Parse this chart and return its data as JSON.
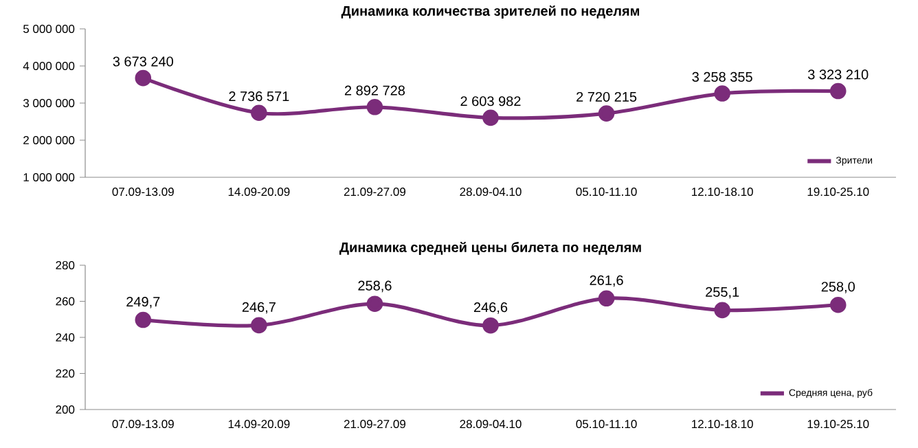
{
  "chart_data": [
    {
      "type": "line",
      "title": "Динамика количества зрителей по неделям",
      "categories": [
        "07.09-13.09",
        "14.09-20.09",
        "21.09-27.09",
        "28.09-04.10",
        "05.10-11.10",
        "12.10-18.10",
        "19.10-25.10"
      ],
      "series": [
        {
          "name": "Зрители",
          "color": "#7b2c7a",
          "values": [
            3673240,
            2736571,
            2892728,
            2603982,
            2720215,
            3258355,
            3323210
          ],
          "value_labels": [
            "3 673 240",
            "2 736 571",
            "2 892 728",
            "2 603 982",
            "2 720 215",
            "3 258 355",
            "3 323 210"
          ]
        }
      ],
      "ylim": [
        1000000,
        5000000
      ],
      "yticks": [
        {
          "value": 1000000,
          "label": "1 000 000"
        },
        {
          "value": 2000000,
          "label": "2 000 000"
        },
        {
          "value": 3000000,
          "label": "3 000 000"
        },
        {
          "value": 4000000,
          "label": "4 000 000"
        },
        {
          "value": 5000000,
          "label": "5 000 000"
        }
      ],
      "legend": "bottom right",
      "marker": "circle",
      "grid": false
    },
    {
      "type": "line",
      "title": "Динамика средней цены билета по неделям",
      "categories": [
        "07.09-13.09",
        "14.09-20.09",
        "21.09-27.09",
        "28.09-04.10",
        "05.10-11.10",
        "12.10-18.10",
        "19.10-25.10"
      ],
      "series": [
        {
          "name": "Средняя цена, руб",
          "color": "#7b2c7a",
          "values": [
            249.7,
            246.7,
            258.6,
            246.6,
            261.6,
            255.1,
            258.0
          ],
          "value_labels": [
            "249,7",
            "246,7",
            "258,6",
            "246,6",
            "261,6",
            "255,1",
            "258,0"
          ]
        }
      ],
      "ylim": [
        200,
        280
      ],
      "yticks": [
        200,
        220,
        240,
        260,
        280
      ],
      "legend": "bottom right",
      "marker": "circle",
      "grid": false
    }
  ]
}
